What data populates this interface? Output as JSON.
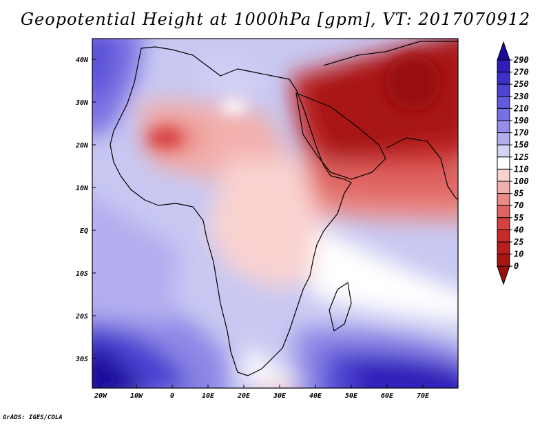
{
  "title": "Geopotential Height at 1000hPa [gpm], VT: 2017070912",
  "credit": "GrADS: IGES/COLA",
  "axes": {
    "x_labels": [
      "20W",
      "10W",
      "0",
      "10E",
      "20E",
      "30E",
      "40E",
      "50E",
      "60E",
      "70E"
    ],
    "y_labels": [
      "40N",
      "30N",
      "20N",
      "10N",
      "EQ",
      "10S",
      "20S",
      "30S"
    ]
  },
  "colorbar": {
    "labels": [
      "290",
      "270",
      "250",
      "230",
      "210",
      "190",
      "170",
      "150",
      "125",
      "110",
      "100",
      "85",
      "70",
      "55",
      "40",
      "25",
      "10",
      "0"
    ],
    "colors": [
      "#1c0a9c",
      "#2e1db8",
      "#3d2fc8",
      "#4f44d2",
      "#6259dc",
      "#7870e2",
      "#948ee8",
      "#b3afef",
      "#d3d3f6",
      "#ffffff",
      "#f9d2d0",
      "#f2b0ad",
      "#e98a86",
      "#df6461",
      "#d6423f",
      "#c72b29",
      "#b81e1d",
      "#a81614",
      "#981010"
    ]
  },
  "colors": {
    "frame": "#000000",
    "coast": "#000000"
  }
}
